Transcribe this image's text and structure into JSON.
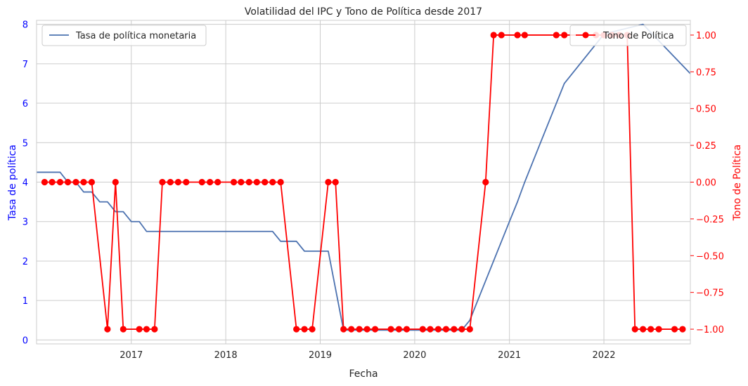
{
  "chart_data": {
    "type": "line",
    "title": "Volatilidad del IPC y Tono de Política desde 2017",
    "xlabel": "Fecha",
    "ylabel_left": "Tasa de política",
    "ylabel_right": "Tono de Política",
    "x_ticks": [
      "2017",
      "2018",
      "2019",
      "2020",
      "2021",
      "2022"
    ],
    "x_tick_values": [
      "2017-01-01",
      "2018-01-01",
      "2019-01-01",
      "2020-01-01",
      "2021-01-01",
      "2022-01-01"
    ],
    "xlim": [
      "2016-01-01",
      "2022-12-01"
    ],
    "ylim_left": [
      -0.1,
      8.1
    ],
    "yticks_left": [
      "0",
      "1",
      "2",
      "3",
      "4",
      "5",
      "6",
      "7",
      "8"
    ],
    "ylim_right": [
      -1.1,
      1.1
    ],
    "yticks_right": [
      "−1.00",
      "−0.75",
      "−0.50",
      "−0.25",
      "0.00",
      "0.25",
      "0.50",
      "0.75",
      "1.00"
    ],
    "ytick_values_right": [
      -1.0,
      -0.75,
      -0.5,
      -0.25,
      0.0,
      0.25,
      0.5,
      0.75,
      1.0
    ],
    "grid": true,
    "colors": {
      "rate": "#4c72b0",
      "tone": "#ff0000",
      "left_axis_text": "#0000ff",
      "right_axis_text": "#ff0000",
      "grid": "#cccccc"
    },
    "series": [
      {
        "name": "Tasa de política monetaria",
        "axis": "left",
        "x": [
          "2016-01-01",
          "2016-04-01",
          "2016-05-01",
          "2016-06-01",
          "2016-07-01",
          "2016-08-01",
          "2016-09-01",
          "2016-10-01",
          "2016-11-01",
          "2016-12-01",
          "2017-01-01",
          "2017-02-01",
          "2017-03-01",
          "2018-01-01",
          "2018-07-01",
          "2018-08-01",
          "2018-10-01",
          "2018-11-01",
          "2019-01-01",
          "2019-02-01",
          "2019-04-01",
          "2020-06-01",
          "2020-07-01",
          "2020-08-01",
          "2020-10-01",
          "2021-01-01",
          "2021-02-01",
          "2021-03-01",
          "2021-05-01",
          "2021-08-01",
          "2022-01-01",
          "2022-03-01",
          "2022-06-01",
          "2022-12-01"
        ],
        "values": [
          4.25,
          4.25,
          4.0,
          4.0,
          3.75,
          3.75,
          3.5,
          3.5,
          3.25,
          3.25,
          3.0,
          3.0,
          2.75,
          2.75,
          2.75,
          2.5,
          2.5,
          2.25,
          2.25,
          2.25,
          0.25,
          0.25,
          0.25,
          0.5,
          1.5,
          3.0,
          3.5,
          4.0,
          5.0,
          6.5,
          7.75,
          7.85,
          8.0,
          6.75
        ]
      },
      {
        "name": "Tono de Política",
        "axis": "right",
        "x": [
          "2016-02-01",
          "2016-03-01",
          "2016-04-01",
          "2016-05-01",
          "2016-06-01",
          "2016-07-01",
          "2016-08-01",
          "2016-10-01",
          "2016-11-01",
          "2016-12-01",
          "2017-02-01",
          "2017-03-01",
          "2017-04-01",
          "2017-05-01",
          "2017-06-01",
          "2017-07-01",
          "2017-08-01",
          "2017-10-01",
          "2017-11-01",
          "2017-12-01",
          "2018-02-01",
          "2018-03-01",
          "2018-04-01",
          "2018-05-01",
          "2018-06-01",
          "2018-07-01",
          "2018-08-01",
          "2018-10-01",
          "2018-11-01",
          "2018-12-01",
          "2019-02-01",
          "2019-03-01",
          "2019-04-01",
          "2019-05-01",
          "2019-06-01",
          "2019-07-01",
          "2019-08-01",
          "2019-10-01",
          "2019-11-01",
          "2019-12-01",
          "2020-02-01",
          "2020-03-01",
          "2020-04-01",
          "2020-05-01",
          "2020-06-01",
          "2020-07-01",
          "2020-08-01",
          "2020-10-01",
          "2020-11-01",
          "2020-12-01",
          "2021-02-01",
          "2021-03-01",
          "2021-07-01",
          "2021-08-01",
          "2021-12-01",
          "2022-01-01",
          "2022-02-01",
          "2022-03-01",
          "2022-04-01",
          "2022-05-01",
          "2022-06-01",
          "2022-07-01",
          "2022-08-01",
          "2022-10-01",
          "2022-11-01"
        ],
        "values": [
          0,
          0,
          0,
          0,
          0,
          0,
          0,
          -1,
          0,
          -1,
          -1,
          -1,
          -1,
          0,
          0,
          0,
          0,
          0,
          0,
          0,
          0,
          0,
          0,
          0,
          0,
          0,
          0,
          -1,
          -1,
          -1,
          0,
          0,
          -1,
          -1,
          -1,
          -1,
          -1,
          -1,
          -1,
          -1,
          -1,
          -1,
          -1,
          -1,
          -1,
          -1,
          -1,
          0,
          1,
          1,
          1,
          1,
          1,
          1,
          1,
          1,
          1,
          1,
          1,
          -1,
          -1,
          -1,
          -1,
          -1,
          -1
        ]
      }
    ],
    "legends": [
      {
        "label": "Tasa de política monetaria",
        "placement": "upper-left"
      },
      {
        "label": "Tono de Política",
        "placement": "upper-right"
      }
    ]
  }
}
